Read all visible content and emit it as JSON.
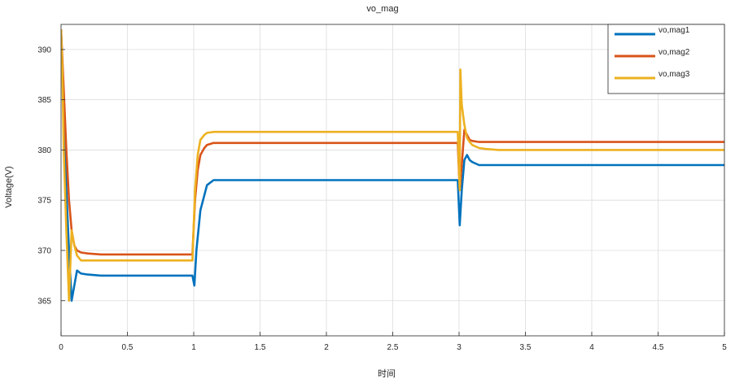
{
  "chart_data": {
    "type": "line",
    "title": "vo_mag",
    "xlabel": "时间",
    "ylabel": "Voltage(V)",
    "xlim": [
      0,
      5
    ],
    "ylim": [
      361.5,
      392.5
    ],
    "xticks": [
      0,
      0.5,
      1,
      1.5,
      2,
      2.5,
      3,
      3.5,
      4,
      4.5,
      5
    ],
    "xtick_labels": [
      "0",
      "0.5",
      "1",
      "1.5",
      "2",
      "2.5",
      "3",
      "3.5",
      "4",
      "4.5",
      "5"
    ],
    "yticks": [
      365,
      370,
      375,
      380,
      385,
      390
    ],
    "ytick_labels": [
      "365",
      "370",
      "375",
      "380",
      "385",
      "390"
    ],
    "grid": true,
    "legend_position": "top-right",
    "series": [
      {
        "name": "vo,mag1",
        "color": "#0072BD",
        "x": [
          0,
          0.02,
          0.04,
          0.06,
          0.08,
          0.1,
          0.12,
          0.15,
          0.2,
          0.3,
          0.5,
          0.8,
          0.99,
          1.005,
          1.02,
          1.05,
          1.1,
          1.15,
          1.2,
          1.3,
          1.5,
          2,
          2.5,
          2.99,
          3.005,
          3.02,
          3.04,
          3.06,
          3.08,
          3.1,
          3.15,
          3.2,
          3.3,
          3.5,
          4,
          4.5,
          5
        ],
        "y": [
          392,
          385,
          376,
          370,
          365,
          366.5,
          368,
          367.7,
          367.6,
          367.5,
          367.5,
          367.5,
          367.5,
          366.5,
          370,
          374,
          376.5,
          377,
          377,
          377,
          377,
          377,
          377,
          377,
          372.5,
          376,
          379,
          379.5,
          379,
          378.8,
          378.5,
          378.5,
          378.5,
          378.5,
          378.5,
          378.5,
          378.5
        ]
      },
      {
        "name": "vo,mag2",
        "color": "#D95319",
        "x": [
          0,
          0.02,
          0.04,
          0.06,
          0.08,
          0.1,
          0.12,
          0.15,
          0.2,
          0.3,
          0.5,
          0.8,
          0.99,
          1.01,
          1.03,
          1.05,
          1.08,
          1.1,
          1.15,
          1.2,
          1.3,
          1.5,
          2,
          2.5,
          2.99,
          3.005,
          3.02,
          3.04,
          3.06,
          3.08,
          3.1,
          3.15,
          3.2,
          3.3,
          3.5,
          4,
          4.5,
          5
        ],
        "y": [
          392,
          386,
          380,
          375,
          372,
          370.5,
          370,
          369.8,
          369.7,
          369.6,
          369.6,
          369.6,
          369.6,
          375,
          378,
          379.5,
          380.2,
          380.5,
          380.7,
          380.7,
          380.7,
          380.7,
          380.7,
          380.7,
          380.7,
          376,
          378.5,
          382,
          381.5,
          381,
          380.9,
          380.8,
          380.8,
          380.8,
          380.8,
          380.8,
          380.8,
          380.8
        ]
      },
      {
        "name": "vo,mag3",
        "color": "#EDB120",
        "x": [
          0,
          0.01,
          0.02,
          0.04,
          0.06,
          0.08,
          0.1,
          0.12,
          0.15,
          0.2,
          0.3,
          0.5,
          0.8,
          0.99,
          1.01,
          1.03,
          1.05,
          1.08,
          1.1,
          1.15,
          1.2,
          1.3,
          1.5,
          2,
          2.5,
          2.99,
          3.005,
          3.01,
          3.02,
          3.04,
          3.06,
          3.08,
          3.1,
          3.15,
          3.2,
          3.3,
          3.5,
          4,
          4.5,
          5
        ],
        "y": [
          392,
          388,
          380,
          372,
          365,
          372,
          370.5,
          369.5,
          369,
          369,
          369,
          369,
          369,
          369,
          376,
          379.5,
          381,
          381.5,
          381.7,
          381.8,
          381.8,
          381.8,
          381.8,
          381.8,
          381.8,
          381.8,
          376,
          388,
          384.5,
          382.5,
          381.2,
          380.8,
          380.5,
          380.2,
          380.1,
          380,
          380,
          380,
          380,
          380
        ]
      }
    ]
  }
}
